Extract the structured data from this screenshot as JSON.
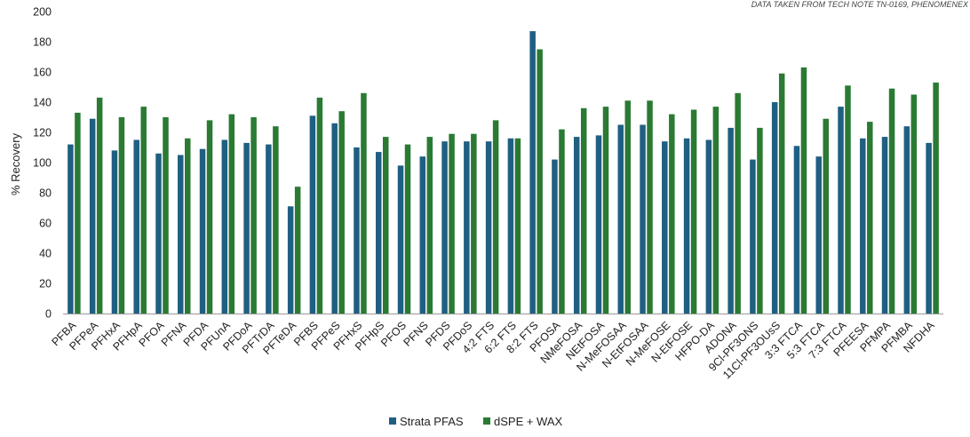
{
  "chart_data": {
    "type": "bar",
    "title": "",
    "source_note": "DATA TAKEN FROM TECH NOTE TN-0169, PHENOMENEX",
    "xlabel": "",
    "ylabel": "% Recovery",
    "ylim": [
      0,
      200
    ],
    "yticks": [
      0,
      20,
      40,
      60,
      80,
      100,
      120,
      140,
      160,
      180,
      200
    ],
    "grid": false,
    "legend_position": "bottom-center",
    "categories": [
      "PFBA",
      "PFPeA",
      "PFHxA",
      "PFHpA",
      "PFOA",
      "PFNA",
      "PFDA",
      "PFUnA",
      "PFDoA",
      "PFTrDA",
      "PFTeDA",
      "PFBS",
      "PFPeS",
      "PFHxS",
      "PFHpS",
      "PFOS",
      "PFNS",
      "PFDS",
      "PFDoS",
      "4:2 FTS",
      "6:2 FTS",
      "8:2 FTS",
      "PFOSA",
      "NMeFOSA",
      "NEtFOSA",
      "N-MeFOSAA",
      "N-EtFOSAA",
      "N-MeFOSE",
      "N-EtFOSE",
      "HFPO-DA",
      "ADONA",
      "9Cl-PF3ONS",
      "11Cl-PF3OUsS",
      "3:3 FTCA",
      "5:3 FTCA",
      "7:3 FTCA",
      "PFEESA",
      "PFMPA",
      "PFMBA",
      "NFDHA"
    ],
    "series": [
      {
        "name": "Strata PFAS",
        "color": "#1f5f82",
        "values": [
          112,
          129,
          108,
          115,
          106,
          105,
          109,
          115,
          113,
          112,
          71,
          131,
          126,
          110,
          107,
          98,
          104,
          114,
          114,
          114,
          116,
          187,
          102,
          117,
          118,
          125,
          125,
          114,
          116,
          115,
          123,
          102,
          140,
          111,
          104,
          137,
          116,
          117,
          124,
          113
        ]
      },
      {
        "name": "dSPE + WAX",
        "color": "#2a7a34",
        "values": [
          133,
          143,
          130,
          137,
          130,
          116,
          128,
          132,
          130,
          124,
          84,
          143,
          134,
          146,
          117,
          112,
          117,
          119,
          119,
          128,
          116,
          175,
          122,
          136,
          137,
          141,
          141,
          132,
          135,
          137,
          146,
          123,
          159,
          163,
          129,
          151,
          127,
          149,
          145,
          153
        ]
      }
    ]
  }
}
